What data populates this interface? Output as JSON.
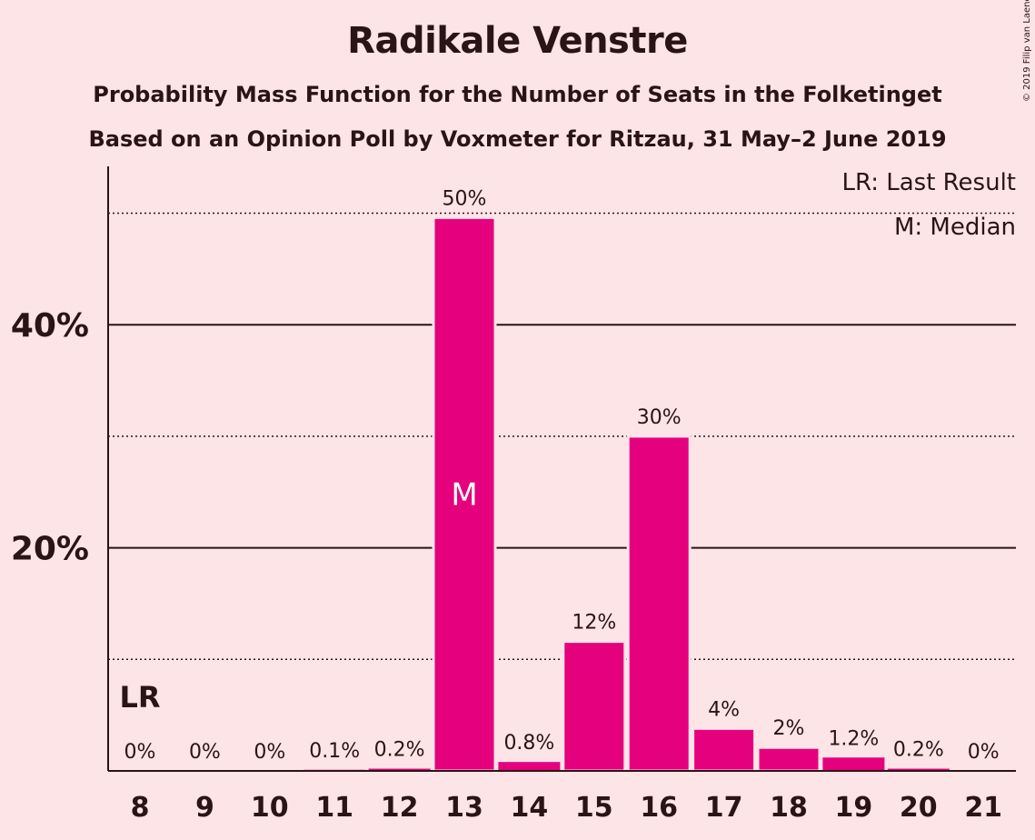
{
  "title": "Radikale Venstre",
  "subtitle": "Probability Mass Function for the Number of Seats in the Folketinget",
  "subtitle2": "Based on an Opinion Poll by Voxmeter for Ritzau, 31 May–2 June 2019",
  "copyright": "© 2019 Filip van Laenen",
  "legend": {
    "last_result": "LR: Last Result",
    "median": "M: Median"
  },
  "colors": {
    "background": "#fde4e6",
    "bar": "#e5007d",
    "text": "#2b1416"
  },
  "chart_data": {
    "type": "bar",
    "categories": [
      "8",
      "9",
      "10",
      "11",
      "12",
      "13",
      "14",
      "15",
      "16",
      "17",
      "18",
      "19",
      "20",
      "21"
    ],
    "values": [
      0,
      0,
      0,
      0.1,
      0.2,
      49.6,
      0.8,
      11.6,
      30.0,
      3.8,
      2.1,
      1.2,
      0.2,
      0
    ],
    "data_labels": [
      "0%",
      "0%",
      "0%",
      "0.1%",
      "0.2%",
      "50%",
      "0.8%",
      "12%",
      "30%",
      "4%",
      "2%",
      "1.2%",
      "0.2%",
      "0%"
    ],
    "ylim": [
      0,
      54.3
    ],
    "y_ticks": [
      {
        "value": 20,
        "label": "20%"
      },
      {
        "value": 40,
        "label": "40%"
      }
    ],
    "dotted_gridlines": [
      10,
      30,
      50
    ],
    "last_result": {
      "category": "8",
      "label": "LR"
    },
    "median": {
      "category": "13",
      "label": "M"
    },
    "legend_position": "top-right"
  }
}
